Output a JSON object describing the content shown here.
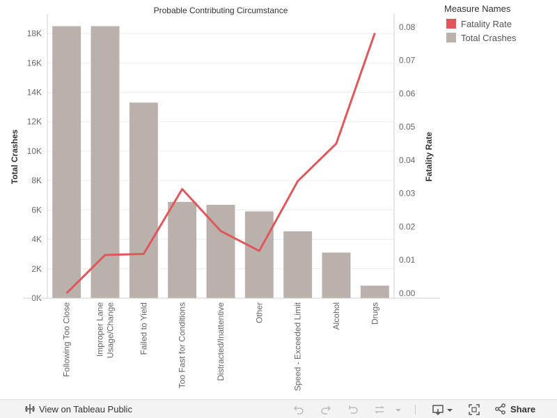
{
  "chart_data": {
    "type": "bar",
    "title": "Probable Contributing Circumstance",
    "categories": [
      "Following Too Close",
      "Improper Lane Usage/Change",
      "Failed to Yield",
      "Too Fast for Conditions",
      "Distracted/Inattentive",
      "Other",
      "Speed - Exceeded Limit",
      "Alcohol",
      "Drugs"
    ],
    "category_labels": [
      [
        "Following Too Close"
      ],
      [
        "Improper Lane",
        "Usage/Change"
      ],
      [
        "Failed to Yield"
      ],
      [
        "Too Fast for Conditions"
      ],
      [
        "Distracted/Inattentive"
      ],
      [
        "Other"
      ],
      [
        "Speed - Exceeded Limit"
      ],
      [
        "Alcohol"
      ],
      [
        "Drugs"
      ]
    ],
    "series": [
      {
        "name": "Total Crashes",
        "type": "bar",
        "axis": "left",
        "color": "#bab0ac",
        "values": [
          18500,
          18500,
          13300,
          6550,
          6350,
          5900,
          4550,
          3100,
          850
        ]
      },
      {
        "name": "Fatality Rate",
        "type": "line",
        "axis": "right",
        "color": "#e15759",
        "values": [
          0.0,
          0.0115,
          0.0118,
          0.0313,
          0.0187,
          0.0127,
          0.0337,
          0.045,
          0.0782
        ]
      }
    ],
    "ylabel_left": "Total Crashes",
    "ylabel_right": "Fatality Rate",
    "ylim_left": [
      0,
      19000
    ],
    "ylim_right": [
      -0.0015,
      0.0825
    ],
    "yticks_left": [
      0,
      2000,
      4000,
      6000,
      8000,
      10000,
      12000,
      14000,
      16000,
      18000
    ],
    "yticks_left_labels": [
      "0K",
      "2K",
      "4K",
      "6K",
      "8K",
      "10K",
      "12K",
      "14K",
      "16K",
      "18K"
    ],
    "yticks_right": [
      0.0,
      0.01,
      0.02,
      0.03,
      0.04,
      0.05,
      0.06,
      0.07,
      0.08
    ],
    "yticks_right_labels": [
      "0.00",
      "0.01",
      "0.02",
      "0.03",
      "0.04",
      "0.05",
      "0.06",
      "0.07",
      "0.08"
    ],
    "grid": true,
    "legend_position": "top-right"
  },
  "legend": {
    "title": "Measure Names",
    "items": [
      {
        "label": "Fatality Rate",
        "color": "#e15759"
      },
      {
        "label": "Total Crashes",
        "color": "#bab0ac"
      }
    ]
  },
  "toolbar": {
    "view_label": "View on Tableau Public",
    "share_label": "Share"
  }
}
